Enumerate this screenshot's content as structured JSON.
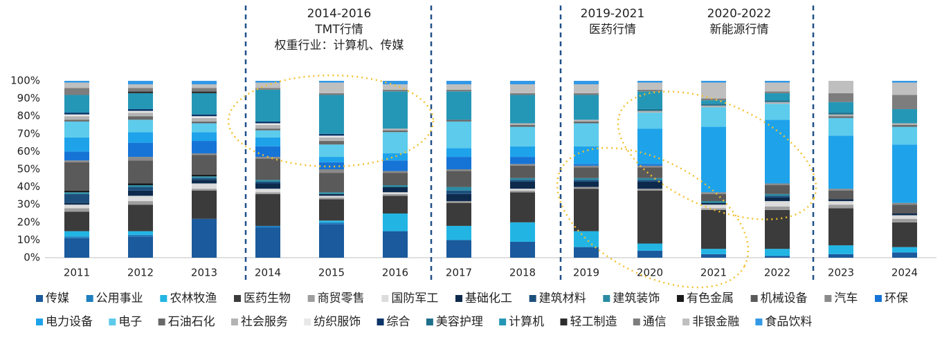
{
  "chart_data": {
    "type": "stacked_bar",
    "categories": [
      "2011",
      "2012",
      "2013",
      "2014",
      "2015",
      "2016",
      "2017",
      "2018",
      "2019",
      "2020",
      "2021",
      "2022",
      "2023",
      "2024"
    ],
    "ylim": [
      0,
      100
    ],
    "yticks": [
      {
        "value": 0,
        "label": "0%"
      },
      {
        "value": 10,
        "label": "10%"
      },
      {
        "value": 20,
        "label": "20%"
      },
      {
        "value": 30,
        "label": "30%"
      },
      {
        "value": 40,
        "label": "40%"
      },
      {
        "value": 50,
        "label": "50%"
      },
      {
        "value": 60,
        "label": "60%"
      },
      {
        "value": 70,
        "label": "70%"
      },
      {
        "value": 80,
        "label": "80%"
      },
      {
        "value": 90,
        "label": "90%"
      },
      {
        "value": 100,
        "label": "100%"
      }
    ],
    "annotations": [
      {
        "lines": [
          "2014-2016",
          "TMT行情",
          "权重行业：计算机、传媒"
        ]
      },
      {
        "lines": [
          "2019-2021",
          "医药行情"
        ]
      },
      {
        "lines": [
          "2020-2022",
          "新能源行情"
        ]
      }
    ],
    "series": [
      {
        "name": "传媒",
        "color": "#1b5a9c",
        "values": [
          11,
          12,
          22,
          17,
          19,
          15,
          10,
          9,
          6,
          4,
          2,
          1,
          2,
          3
        ]
      },
      {
        "name": "公用事业",
        "color": "#1f7fbf",
        "values": [
          1,
          1,
          0,
          1,
          1,
          0,
          0,
          0,
          0,
          0,
          0,
          0,
          0,
          0
        ]
      },
      {
        "name": "农林牧渔",
        "color": "#22b5e3",
        "values": [
          3,
          2,
          0,
          0,
          1,
          10,
          8,
          11,
          9,
          4,
          3,
          4,
          5,
          3
        ]
      },
      {
        "name": "医药生物",
        "color": "#3b3b3b",
        "values": [
          11,
          15,
          16,
          18,
          12,
          10,
          13,
          17,
          24,
          30,
          22,
          22,
          21,
          14
        ]
      },
      {
        "name": "商贸零售",
        "color": "#9e9e9e",
        "values": [
          2,
          2,
          1,
          1,
          1,
          1,
          1,
          1,
          1,
          1,
          1,
          2,
          2,
          2
        ]
      },
      {
        "name": "国防军工",
        "color": "#dcdcdc",
        "values": [
          2,
          3,
          3,
          2,
          1,
          1,
          0,
          1,
          0,
          0,
          2,
          3,
          2,
          2
        ]
      },
      {
        "name": "基础化工",
        "color": "#0d2a4c",
        "values": [
          1,
          3,
          2,
          3,
          1,
          3,
          4,
          4,
          3,
          4,
          1,
          2,
          1,
          1
        ]
      },
      {
        "name": "建筑材料",
        "color": "#1d4f7c",
        "values": [
          5,
          2,
          1,
          1,
          0,
          0,
          2,
          1,
          1,
          1,
          0,
          1,
          0,
          0
        ]
      },
      {
        "name": "建筑装饰",
        "color": "#2b8ba3",
        "values": [
          1,
          1,
          1,
          1,
          1,
          1,
          2,
          1,
          1,
          1,
          1,
          1,
          0,
          0
        ]
      },
      {
        "name": "有色金属",
        "color": "#1a1a1a",
        "values": [
          1,
          1,
          1,
          0,
          0,
          0,
          0,
          0,
          0,
          0,
          0,
          0,
          0,
          0
        ]
      },
      {
        "name": "机械设备",
        "color": "#5a5a5a",
        "values": [
          16,
          13,
          11,
          12,
          11,
          7,
          9,
          7,
          6,
          6,
          4,
          5,
          5,
          5
        ]
      },
      {
        "name": "汽车",
        "color": "#8a8a8a",
        "values": [
          1,
          2,
          1,
          1,
          2,
          1,
          1,
          1,
          1,
          1,
          1,
          1,
          1,
          1
        ]
      },
      {
        "name": "环保",
        "color": "#1674d6",
        "values": [
          5,
          8,
          7,
          6,
          4,
          6,
          7,
          4,
          1,
          1,
          0,
          0,
          0,
          0
        ]
      },
      {
        "name": "电力设备",
        "color": "#1ea3ea",
        "values": [
          8,
          6,
          5,
          5,
          3,
          4,
          5,
          6,
          10,
          20,
          37,
          36,
          30,
          33
        ]
      },
      {
        "name": "电子",
        "color": "#5dcbeb",
        "values": [
          9,
          7,
          5,
          4,
          7,
          12,
          15,
          11,
          13,
          9,
          11,
          9,
          10,
          10
        ]
      },
      {
        "name": "石油石化",
        "color": "#686868",
        "values": [
          1,
          2,
          1,
          1,
          2,
          1,
          1,
          1,
          1,
          0,
          0,
          0,
          1,
          1
        ]
      },
      {
        "name": "社会服务",
        "color": "#b3b3b3",
        "values": [
          2,
          2,
          2,
          2,
          2,
          1,
          0,
          1,
          1,
          1,
          1,
          1,
          1,
          1
        ]
      },
      {
        "name": "纺织服饰",
        "color": "#e8e8e8",
        "values": [
          1,
          1,
          1,
          1,
          1,
          0,
          0,
          0,
          0,
          0,
          0,
          0,
          0,
          0
        ]
      },
      {
        "name": "综合",
        "color": "#0b3468",
        "values": [
          1,
          1,
          1,
          1,
          1,
          0,
          0,
          0,
          0,
          0,
          0,
          0,
          0,
          0
        ]
      },
      {
        "name": "美容护理",
        "color": "#1e6f8c",
        "values": [
          0,
          0,
          0,
          0,
          0,
          0,
          0,
          0,
          0,
          1,
          1,
          1,
          1,
          0
        ]
      },
      {
        "name": "计算机",
        "color": "#2597b6",
        "values": [
          10,
          9,
          12,
          18,
          22,
          21,
          16,
          16,
          14,
          10,
          2,
          4,
          6,
          8
        ]
      },
      {
        "name": "轻工制造",
        "color": "#2c2c2c",
        "values": [
          0,
          1,
          1,
          0,
          0,
          0,
          0,
          0,
          0,
          0,
          0,
          0,
          0,
          0
        ]
      },
      {
        "name": "通信",
        "color": "#7d7d7d",
        "values": [
          4,
          2,
          2,
          1,
          1,
          1,
          1,
          1,
          1,
          1,
          1,
          1,
          5,
          8
        ]
      },
      {
        "name": "非银金融",
        "color": "#bfbfbf",
        "values": [
          3,
          2,
          2,
          3,
          6,
          3,
          3,
          5,
          5,
          4,
          9,
          5,
          7,
          7
        ]
      },
      {
        "name": "食品饮料",
        "color": "#3399e6",
        "values": [
          1,
          2,
          2,
          1,
          1,
          2,
          2,
          2,
          2,
          1,
          1,
          1,
          0,
          1
        ]
      }
    ]
  }
}
